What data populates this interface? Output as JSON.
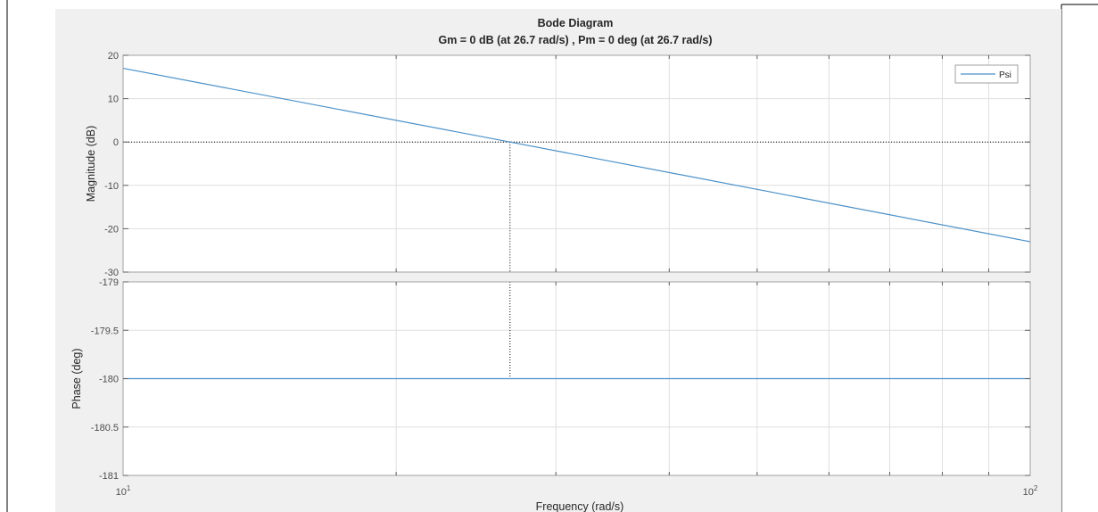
{
  "figure": {
    "title": "Bode Diagram",
    "subtitle": "Gm = 0 dB (at 26.7 rad/s) ,  Pm = 0 deg (at 26.7 rad/s)",
    "xlabel": "Frequency  (rad/s)"
  },
  "colors": {
    "series": "#4a90c8",
    "background": "#f0f0f0",
    "axes": "#ffffff",
    "grid": "#dfdfdf",
    "text": "#262626"
  },
  "chart_data": [
    {
      "type": "line",
      "name": "magnitude",
      "title": "",
      "ylabel": "Magnitude (dB)",
      "xscale": "log",
      "xlim": [
        10,
        100
      ],
      "ylim": [
        -30,
        20
      ],
      "yticks": [
        20,
        10,
        0,
        -10,
        -20,
        -30
      ],
      "ytick_labels": [
        "20",
        "10",
        "0",
        "-10",
        "-20",
        "-30"
      ],
      "grid": true,
      "legend": {
        "placement": "top-right",
        "entries": [
          "Psi"
        ]
      },
      "series": [
        {
          "name": "Psi",
          "x": [
            10,
            26.7,
            100
          ],
          "y": [
            17.0,
            0.0,
            -23.0
          ]
        }
      ],
      "reference_lines": [
        {
          "orientation": "horizontal",
          "y": 0,
          "style": "dotted"
        }
      ],
      "markers": [
        {
          "orientation": "vertical",
          "x": 26.7,
          "style": "dotted"
        }
      ]
    },
    {
      "type": "line",
      "name": "phase",
      "title": "",
      "ylabel": "Phase (deg)",
      "xscale": "log",
      "xlim": [
        10,
        100
      ],
      "ylim": [
        -181,
        -179
      ],
      "yticks": [
        -179,
        -179.5,
        -180,
        -180.5,
        -181
      ],
      "ytick_labels": [
        "-179",
        "-179.5",
        "-180",
        "-180.5",
        "-181"
      ],
      "xtick_labels": [
        {
          "base": "10",
          "exp": "1"
        },
        {
          "base": "10",
          "exp": "2"
        }
      ],
      "grid": true,
      "series": [
        {
          "name": "Psi",
          "x": [
            10,
            100
          ],
          "y": [
            -180,
            -180
          ]
        }
      ],
      "markers": [
        {
          "orientation": "vertical",
          "x": 26.7,
          "style": "dotted"
        }
      ]
    }
  ]
}
